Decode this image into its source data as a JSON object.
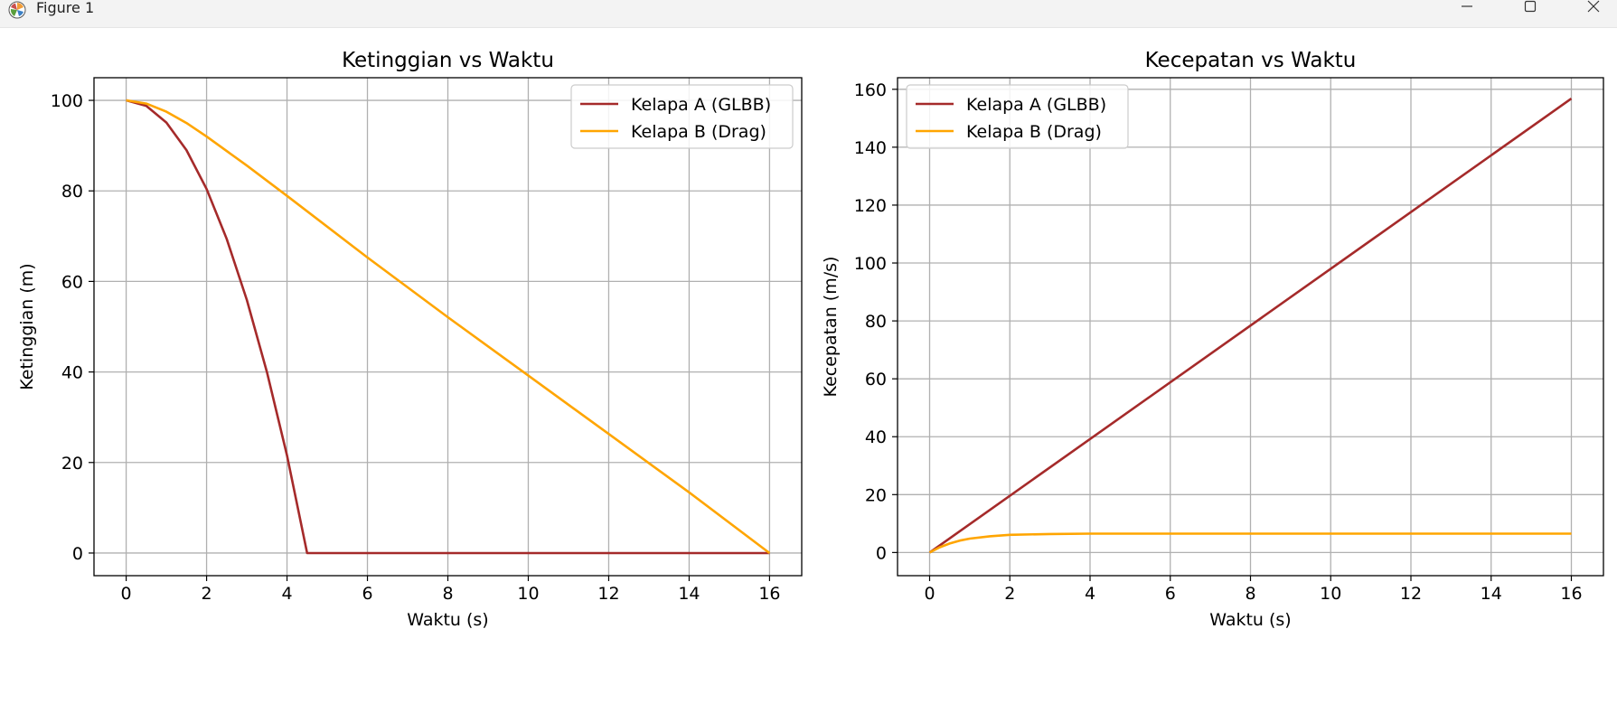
{
  "window": {
    "title": "Figure 1",
    "app_icon": "matplotlib-icon",
    "controls": [
      "minimize-icon",
      "maximize-icon",
      "close-icon"
    ]
  },
  "colors": {
    "glbb": "#a52a2a",
    "drag": "#ffa500",
    "grid": "#b0b0b0",
    "axes": "#000000",
    "titlebar": "#f3f3f3"
  },
  "chart_data": [
    {
      "type": "line",
      "title": "Ketinggian vs Waktu",
      "xlabel": "Waktu (s)",
      "ylabel": "Ketinggian (m)",
      "xlim": [
        -0.8,
        16.8
      ],
      "ylim": [
        -5,
        105
      ],
      "xticks": [
        0,
        2,
        4,
        6,
        8,
        10,
        12,
        14,
        16
      ],
      "yticks": [
        0,
        20,
        40,
        60,
        80,
        100
      ],
      "grid": true,
      "legend": "top-right",
      "series": [
        {
          "name": "Kelapa A (GLBB)",
          "color": "#a52a2a",
          "x": [
            0,
            0.5,
            1,
            1.5,
            2,
            2.5,
            3,
            3.5,
            4,
            4.5,
            6,
            8,
            10,
            12,
            14,
            16
          ],
          "y": [
            100,
            98.8,
            95.1,
            89,
            80.4,
            69.4,
            55.9,
            40,
            21.6,
            0,
            0,
            0,
            0,
            0,
            0,
            0
          ]
        },
        {
          "name": "Kelapa B (Drag)",
          "color": "#ffa500",
          "x": [
            0,
            0.5,
            1,
            1.5,
            2,
            3,
            4,
            6,
            8,
            10,
            12,
            14,
            16
          ],
          "y": [
            100,
            99.3,
            97.5,
            95,
            92,
            85.6,
            78.9,
            65.3,
            52.1,
            39.2,
            26.3,
            13.4,
            0
          ]
        }
      ]
    },
    {
      "type": "line",
      "title": "Kecepatan vs Waktu",
      "xlabel": "Waktu (s)",
      "ylabel": "Kecepatan (m/s)",
      "xlim": [
        -0.8,
        16.8
      ],
      "ylim": [
        -8,
        164
      ],
      "xticks": [
        0,
        2,
        4,
        6,
        8,
        10,
        12,
        14,
        16
      ],
      "yticks": [
        0,
        20,
        40,
        60,
        80,
        100,
        120,
        140,
        160
      ],
      "grid": true,
      "legend": "top-left",
      "series": [
        {
          "name": "Kelapa A (GLBB)",
          "color": "#a52a2a",
          "x": [
            0,
            16
          ],
          "y": [
            0,
            156.8
          ]
        },
        {
          "name": "Kelapa B (Drag)",
          "color": "#ffa500",
          "x": [
            0,
            0.25,
            0.5,
            0.75,
            1,
            1.5,
            2,
            3,
            4,
            6,
            8,
            10,
            12,
            14,
            16
          ],
          "y": [
            0,
            1.8,
            3.1,
            4.1,
            4.8,
            5.6,
            6.1,
            6.4,
            6.5,
            6.5,
            6.5,
            6.5,
            6.5,
            6.5,
            6.5
          ]
        }
      ]
    }
  ]
}
